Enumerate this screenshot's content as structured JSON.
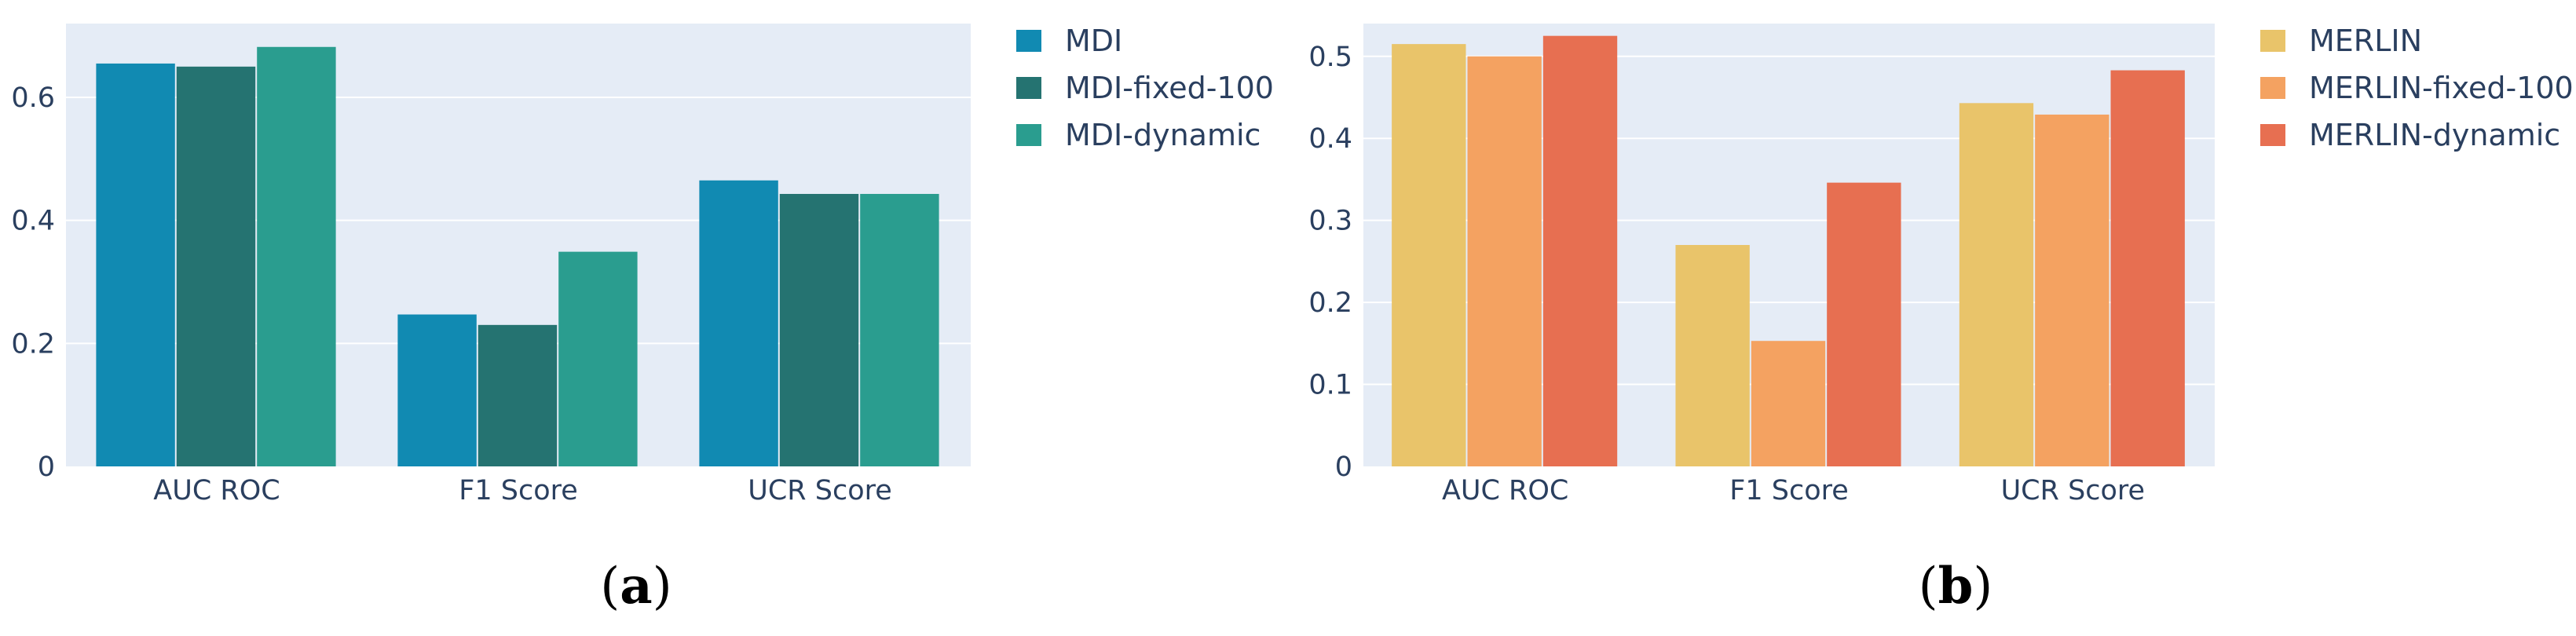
{
  "chart_data": [
    {
      "type": "bar",
      "panel_label": "a",
      "categories": [
        "AUC ROC",
        "F1 Score",
        "UCR Score"
      ],
      "series": [
        {
          "name": "MDI",
          "values": [
            0.655,
            0.247,
            0.465
          ],
          "color": "#118ab2"
        },
        {
          "name": "MDI-fixed-100",
          "values": [
            0.65,
            0.23,
            0.443
          ],
          "color": "#257371"
        },
        {
          "name": "MDI-dynamic",
          "values": [
            0.682,
            0.349,
            0.443
          ],
          "color": "#2a9d8f"
        }
      ],
      "ylim": [
        0,
        0.72
      ],
      "yticks": [
        0,
        0.2,
        0.4,
        0.6
      ],
      "ytick_labels": [
        "0",
        "0.2",
        "0.4",
        "0.6"
      ],
      "grid": true,
      "legend_position": "right"
    },
    {
      "type": "bar",
      "panel_label": "b",
      "categories": [
        "AUC ROC",
        "F1 Score",
        "UCR Score"
      ],
      "series": [
        {
          "name": "MERLIN",
          "values": [
            0.515,
            0.27,
            0.443
          ],
          "color": "#e9c46a"
        },
        {
          "name": "MERLIN-fixed-100",
          "values": [
            0.5,
            0.153,
            0.429
          ],
          "color": "#f4a261"
        },
        {
          "name": "MERLIN-dynamic",
          "values": [
            0.525,
            0.346,
            0.483
          ],
          "color": "#e76f51"
        }
      ],
      "ylim": [
        0,
        0.54
      ],
      "yticks": [
        0,
        0.1,
        0.2,
        0.3,
        0.4,
        0.5
      ],
      "ytick_labels": [
        "0",
        "0.1",
        "0.2",
        "0.3",
        "0.4",
        "0.5"
      ],
      "grid": true,
      "legend_position": "right"
    }
  ]
}
